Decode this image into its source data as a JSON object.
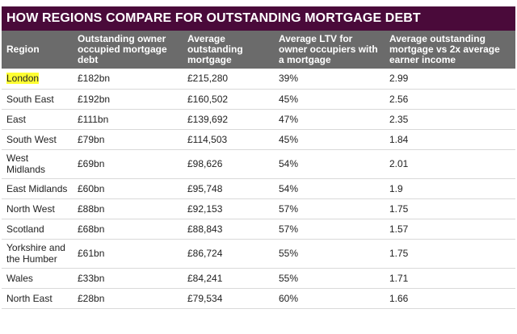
{
  "title": "HOW REGIONS COMPARE FOR OUTSTANDING MORTGAGE DEBT",
  "headers": [
    "Region",
    "Outstanding owner occupied mortgage debt",
    "Average outstanding mortgage",
    "Average LTV for owner occupiers with a mortgage",
    "Average outstanding mortgage vs 2x average earner income"
  ],
  "rows": [
    {
      "region": "London",
      "debt": "£182bn",
      "avg": "£215,280",
      "ltv": "39%",
      "ratio": "2.99"
    },
    {
      "region": "South East",
      "debt": "£192bn",
      "avg": "£160,502",
      "ltv": "45%",
      "ratio": "2.56"
    },
    {
      "region": "East",
      "debt": "£111bn",
      "avg": "£139,692",
      "ltv": "47%",
      "ratio": "2.35"
    },
    {
      "region": "South West",
      "debt": "£79bn",
      "avg": "£114,503",
      "ltv": "45%",
      "ratio": "1.84"
    },
    {
      "region": "West Midlands",
      "debt": "£69bn",
      "avg": "£98,626",
      "ltv": "54%",
      "ratio": "2.01"
    },
    {
      "region": "East Midlands",
      "debt": "£60bn",
      "avg": "£95,748",
      "ltv": "54%",
      "ratio": "1.9"
    },
    {
      "region": "North West",
      "debt": "£88bn",
      "avg": "£92,153",
      "ltv": "57%",
      "ratio": "1.75"
    },
    {
      "region": "Scotland",
      "debt": "£68bn",
      "avg": "£88,843",
      "ltv": "57%",
      "ratio": "1.57"
    },
    {
      "region": "Yorkshire and the Humber",
      "debt": "£61bn",
      "avg": "£86,724",
      "ltv": "55%",
      "ratio": "1.75"
    },
    {
      "region": "Wales",
      "debt": "£33bn",
      "avg": "£84,241",
      "ltv": "55%",
      "ratio": "1.71"
    },
    {
      "region": "North East",
      "debt": "£28bn",
      "avg": "£79,534",
      "ltv": "60%",
      "ratio": "1.66"
    }
  ],
  "highlight_color": "#ffff33",
  "title_bar_color": "#4a0a3a",
  "header_row_color": "#6b6b6b"
}
